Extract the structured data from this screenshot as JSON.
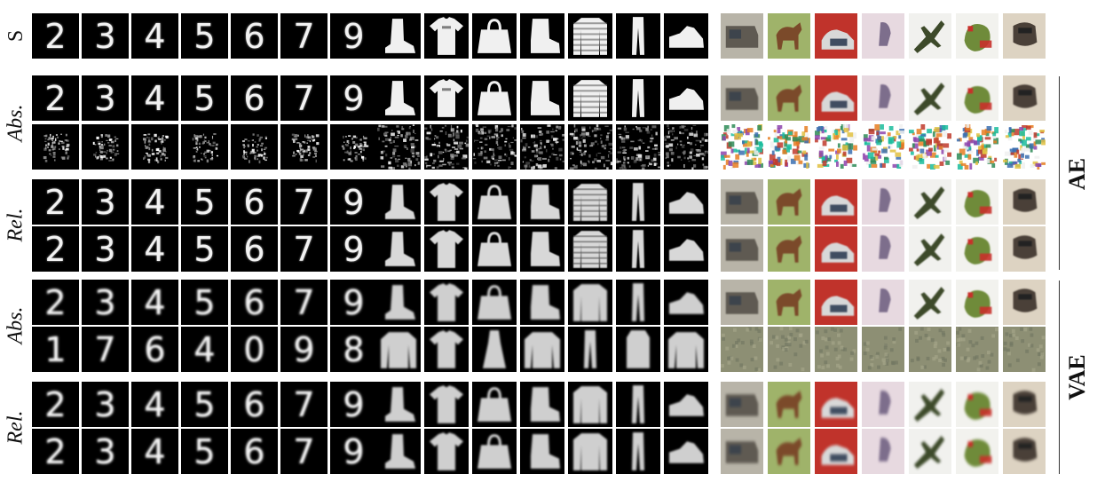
{
  "row_labels": {
    "source": "S",
    "ae_abs": "Abs.",
    "ae_rel": "Rel.",
    "vae_abs": "Abs.",
    "vae_rel": "Rel."
  },
  "group_labels": {
    "ae": "AE",
    "vae": "VAE"
  },
  "rows": [
    {
      "digits": [
        "2",
        "3",
        "4",
        "5",
        "6",
        "7",
        "9"
      ],
      "mnist_style": "sharp",
      "fashion_style": "sharp",
      "cifar_style": "sharp"
    },
    {
      "digits": [
        "2",
        "3",
        "4",
        "5",
        "6",
        "7",
        "9"
      ],
      "mnist_style": "sharp",
      "fashion_style": "sharp",
      "cifar_style": "soft"
    },
    {
      "digits": [],
      "mnist_style": "noise",
      "fashion_style": "noise",
      "cifar_style": "noise"
    },
    {
      "digits": [
        "2",
        "3",
        "4",
        "5",
        "6",
        "7",
        "9"
      ],
      "mnist_style": "sharp",
      "fashion_style": "soft",
      "cifar_style": "soft"
    },
    {
      "digits": [
        "2",
        "3",
        "4",
        "5",
        "6",
        "7",
        "9"
      ],
      "mnist_style": "sharp",
      "fashion_style": "soft",
      "cifar_style": "soft"
    },
    {
      "digits": [
        "2",
        "3",
        "4",
        "5",
        "6",
        "7",
        "9"
      ],
      "mnist_style": "blurry",
      "fashion_style": "smooth",
      "cifar_style": "soft"
    },
    {
      "digits": [
        "1",
        "7",
        "6",
        "4",
        "0",
        "9",
        "8"
      ],
      "mnist_style": "blurry",
      "fashion_style": "smooth-alt",
      "cifar_style": "haze"
    },
    {
      "digits": [
        "2",
        "3",
        "4",
        "5",
        "6",
        "7",
        "9"
      ],
      "mnist_style": "blurry",
      "fashion_style": "smooth",
      "cifar_style": "blur"
    },
    {
      "digits": [
        "2",
        "3",
        "4",
        "5",
        "6",
        "7",
        "9"
      ],
      "mnist_style": "blurry",
      "fashion_style": "smooth",
      "cifar_style": "blur"
    }
  ],
  "fashion_items": [
    "ankle-boot",
    "t-shirt",
    "handbag",
    "boot",
    "sweater",
    "trousers",
    "sneaker"
  ],
  "fashion_items_alt": [
    "pullover",
    "t-shirt",
    "dress",
    "pullover",
    "trousers",
    "coat",
    "pullover"
  ],
  "cifar_items": [
    "truck",
    "horse",
    "car",
    "deer",
    "airplane",
    "frog",
    "dog"
  ],
  "colors": {
    "cifar_truck": "#8a8276",
    "cifar_horse": "#6e7d3b",
    "cifar_car": "#c0332b",
    "cifar_deer": "#e7d9e0",
    "cifar_airplane": "#f1f1ee",
    "cifar_frog": "#8b9a4a",
    "cifar_dog": "#d9cdb8"
  }
}
